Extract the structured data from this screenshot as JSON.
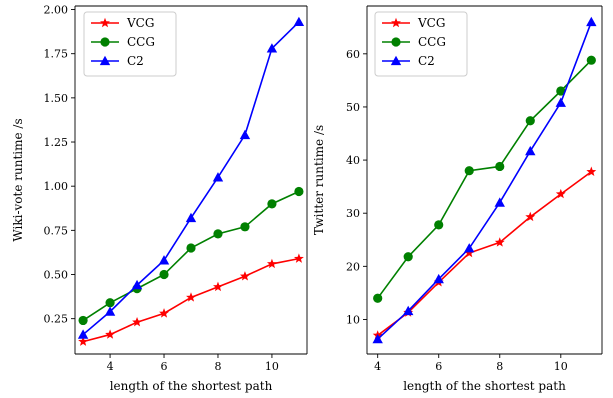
{
  "chart_data": [
    {
      "type": "line",
      "xlabel": "length of the shortest path",
      "ylabel": "Wiki-vote runtime /s",
      "xlim": [
        2.7,
        11.3
      ],
      "ylim": [
        0.05,
        2.02
      ],
      "xticks": [
        4,
        6,
        8,
        10
      ],
      "yticks": [
        0.25,
        0.5,
        0.75,
        1.0,
        1.25,
        1.5,
        1.75,
        2.0
      ],
      "ytick_labels": [
        "0.25",
        "0.50",
        "0.75",
        "1.00",
        "1.25",
        "1.50",
        "1.75",
        "2.00"
      ],
      "legend_position": "top-left",
      "grid": false,
      "x": [
        3,
        4,
        5,
        6,
        7,
        8,
        9,
        10,
        11
      ],
      "series": [
        {
          "name": "VCG",
          "color": "#ff0000",
          "marker": "star",
          "values": [
            0.12,
            0.16,
            0.23,
            0.28,
            0.37,
            0.43,
            0.49,
            0.56,
            0.59
          ]
        },
        {
          "name": "CCG",
          "color": "#008000",
          "marker": "circle",
          "values": [
            0.24,
            0.34,
            0.42,
            0.5,
            0.65,
            0.73,
            0.77,
            0.9,
            0.97
          ]
        },
        {
          "name": "C2",
          "color": "#0000ff",
          "marker": "triangle",
          "values": [
            0.16,
            0.29,
            0.44,
            0.58,
            0.82,
            1.05,
            1.29,
            1.78,
            1.93
          ]
        }
      ]
    },
    {
      "type": "line",
      "xlabel": "length of the shortest path",
      "ylabel": "Twitter runtime /s",
      "xlim": [
        3.65,
        11.35
      ],
      "ylim": [
        3.5,
        69.0
      ],
      "xticks": [
        4,
        6,
        8,
        10
      ],
      "yticks": [
        10,
        20,
        30,
        40,
        50,
        60
      ],
      "ytick_labels": [
        "10",
        "20",
        "30",
        "40",
        "50",
        "60"
      ],
      "legend_position": "top-left",
      "grid": false,
      "x": [
        4,
        5,
        6,
        7,
        8,
        9,
        10,
        11
      ],
      "series": [
        {
          "name": "VCG",
          "color": "#ff0000",
          "marker": "star",
          "values": [
            7.0,
            11.3,
            17.0,
            22.5,
            24.5,
            29.3,
            33.6,
            37.8
          ]
        },
        {
          "name": "CCG",
          "color": "#008000",
          "marker": "circle",
          "values": [
            14.0,
            21.8,
            27.8,
            38.0,
            38.8,
            47.4,
            53.0,
            58.8
          ]
        },
        {
          "name": "C2",
          "color": "#0000ff",
          "marker": "triangle",
          "values": [
            6.3,
            11.6,
            17.6,
            23.4,
            32.0,
            41.7,
            50.8,
            66.0
          ]
        }
      ]
    }
  ]
}
